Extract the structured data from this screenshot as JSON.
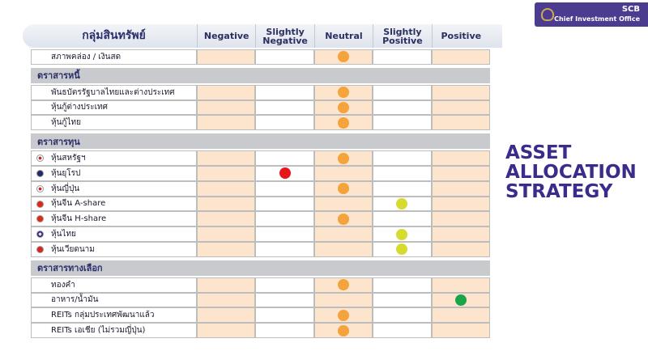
{
  "logo": {
    "brand": "SCB",
    "unit": "Chief Investment Office"
  },
  "title_lines": [
    "ASSET",
    "ALLOCATION",
    "STRATEGY"
  ],
  "table": {
    "header": "กลุ่มสินทรัพย์",
    "columns": [
      "Negative",
      "Slightly Negative",
      "Neutral",
      "Slightly Positive",
      "Positive"
    ],
    "rows": [
      {
        "label": "สภาพคล่อง / เงินสด",
        "position": 2,
        "color": "#f5a33c"
      },
      {
        "section": "ตราสารหนี้"
      },
      {
        "label": "พันธบัตรรัฐบาลไทยและต่างประเทศ",
        "position": 2,
        "color": "#f5a33c"
      },
      {
        "label": "หุ้นกู้ต่างประเทศ",
        "position": 2,
        "color": "#f5a33c"
      },
      {
        "label": "หุ้นกู้ไทย",
        "position": 2,
        "color": "#f5a33c"
      },
      {
        "section": "ตราสารทุน"
      },
      {
        "label": "หุ้นสหรัฐฯ",
        "position": 2,
        "color": "#f5a33c"
      },
      {
        "label": "หุ้นยุโรป",
        "position": 1,
        "color": "#e8161b"
      },
      {
        "label": "หุ้นญี่ปุ่น",
        "position": 2,
        "color": "#f5a33c"
      },
      {
        "label": "หุ้นจีน A-share",
        "position": 3,
        "color": "#d6dc2e"
      },
      {
        "label": "หุ้นจีน H-share",
        "position": 2,
        "color": "#f5a33c"
      },
      {
        "label": "หุ้นไทย",
        "position": 3,
        "color": "#d6dc2e"
      },
      {
        "label": "หุ้นเวียดนาม",
        "position": 3,
        "color": "#d6dc2e"
      },
      {
        "section": "ตราสารทางเลือก"
      },
      {
        "label": "ทองคำ",
        "position": 2,
        "color": "#f5a33c"
      },
      {
        "label": "อาหาร/น้ำมัน",
        "position": 4,
        "color": "#1ba548"
      },
      {
        "label": "REITs กลุ่มประเทศพัฒนาแล้ว",
        "position": 2,
        "color": "#f5a33c"
      },
      {
        "label": "REITs เอเชีย (ไม่รวมญี่ปุ่น)",
        "position": 2,
        "color": "#f5a33c"
      }
    ]
  }
}
